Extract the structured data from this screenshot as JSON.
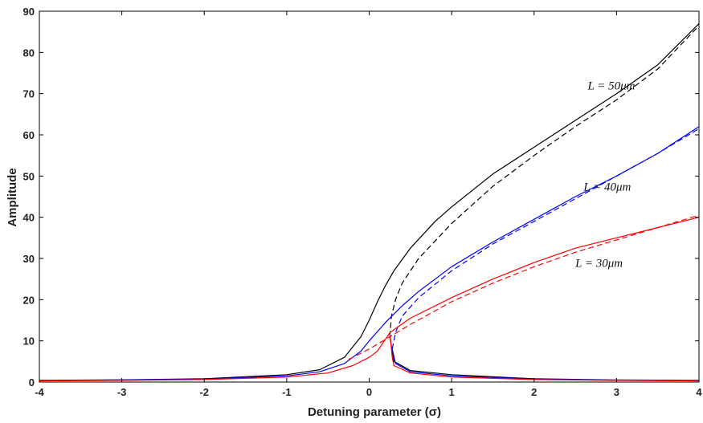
{
  "chart_data": {
    "type": "line",
    "xlabel": "Detuning parameter (σ)",
    "ylabel": "Amplitude",
    "xlim": [
      -4,
      4
    ],
    "ylim": [
      0,
      90
    ],
    "xticks": [
      -4,
      -3,
      -2,
      -1,
      0,
      1,
      2,
      3,
      4
    ],
    "yticks": [
      0,
      10,
      20,
      30,
      40,
      50,
      60,
      70,
      80,
      90
    ],
    "grid": false,
    "legend": "none",
    "series": [
      {
        "color": "#000000",
        "dash": false,
        "branch": "upper",
        "points": [
          [
            -4,
            0.4
          ],
          [
            -3,
            0.55
          ],
          [
            -2,
            0.8
          ],
          [
            -1,
            1.8
          ],
          [
            -0.6,
            3
          ],
          [
            -0.3,
            6
          ],
          [
            -0.1,
            11
          ],
          [
            0,
            15
          ],
          [
            0.1,
            19.5
          ],
          [
            0.2,
            23.5
          ],
          [
            0.3,
            27
          ],
          [
            0.5,
            32.5
          ],
          [
            0.8,
            39
          ],
          [
            1,
            42.5
          ],
          [
            1.5,
            50.5
          ],
          [
            2,
            57
          ],
          [
            2.5,
            63.5
          ],
          [
            3,
            70
          ],
          [
            3.5,
            77
          ],
          [
            4,
            87
          ]
        ]
      },
      {
        "color": "#000000",
        "dash": true,
        "branch": "middle",
        "points": [
          [
            0.25,
            11
          ],
          [
            0.27,
            16
          ],
          [
            0.32,
            20
          ],
          [
            0.4,
            24
          ],
          [
            0.6,
            30
          ],
          [
            1,
            38.5
          ],
          [
            1.5,
            47.5
          ],
          [
            2,
            55
          ],
          [
            2.5,
            62
          ],
          [
            3,
            68.5
          ],
          [
            3.5,
            76
          ],
          [
            4,
            86.5
          ]
        ]
      },
      {
        "color": "#000000",
        "dash": false,
        "branch": "lower",
        "points": [
          [
            0.25,
            11
          ],
          [
            0.3,
            5
          ],
          [
            0.5,
            2.8
          ],
          [
            1,
            1.8
          ],
          [
            2,
            0.8
          ],
          [
            3,
            0.5
          ],
          [
            4,
            0.4
          ]
        ]
      },
      {
        "color": "#0000ff",
        "dash": false,
        "branch": "upper",
        "points": [
          [
            -4,
            0.35
          ],
          [
            -3,
            0.5
          ],
          [
            -2,
            0.7
          ],
          [
            -1,
            1.5
          ],
          [
            -0.6,
            2.5
          ],
          [
            -0.3,
            4.5
          ],
          [
            -0.1,
            7.5
          ],
          [
            0,
            10
          ],
          [
            0.2,
            14.5
          ],
          [
            0.4,
            18.5
          ],
          [
            0.6,
            22
          ],
          [
            1,
            28
          ],
          [
            1.5,
            34
          ],
          [
            2,
            39.5
          ],
          [
            2.5,
            45
          ],
          [
            3,
            50
          ],
          [
            3.5,
            55.5
          ],
          [
            4,
            62
          ]
        ]
      },
      {
        "color": "#0000ff",
        "dash": true,
        "branch": "middle",
        "points": [
          [
            0.28,
            8
          ],
          [
            0.32,
            12
          ],
          [
            0.4,
            16
          ],
          [
            0.6,
            20.5
          ],
          [
            1,
            27
          ],
          [
            1.5,
            33.5
          ],
          [
            2,
            39
          ],
          [
            2.5,
            44.5
          ],
          [
            3,
            50
          ],
          [
            3.5,
            55.5
          ],
          [
            4,
            61.5
          ]
        ]
      },
      {
        "color": "#0000ff",
        "dash": false,
        "branch": "lower",
        "points": [
          [
            0.28,
            8
          ],
          [
            0.32,
            4.5
          ],
          [
            0.5,
            2.5
          ],
          [
            1,
            1.5
          ],
          [
            2,
            0.7
          ],
          [
            3,
            0.45
          ],
          [
            4,
            0.35
          ]
        ]
      },
      {
        "color": "#ff0000",
        "dash": false,
        "branch": "upper",
        "points": [
          [
            -4,
            0.3
          ],
          [
            -3,
            0.4
          ],
          [
            -2,
            0.6
          ],
          [
            -1,
            1.2
          ],
          [
            -0.5,
            2.2
          ],
          [
            -0.2,
            4
          ],
          [
            0,
            6
          ],
          [
            0.1,
            7.5
          ],
          [
            0.25,
            12
          ],
          [
            0.5,
            15.5
          ],
          [
            1,
            20.5
          ],
          [
            1.5,
            25
          ],
          [
            2,
            29
          ],
          [
            2.5,
            32.5
          ],
          [
            3,
            35
          ],
          [
            3.5,
            37.5
          ],
          [
            4,
            40
          ]
        ]
      },
      {
        "color": "#ff0000",
        "dash": true,
        "branch": "middle",
        "points": [
          [
            -0.25,
            5.5
          ],
          [
            0,
            8
          ],
          [
            0.25,
            11
          ],
          [
            0.5,
            14
          ],
          [
            1,
            19.5
          ],
          [
            1.5,
            24
          ],
          [
            2,
            28
          ],
          [
            2.5,
            31.5
          ],
          [
            3,
            34.5
          ],
          [
            3.5,
            37.5
          ],
          [
            4,
            40.5
          ]
        ]
      },
      {
        "color": "#ff0000",
        "dash": false,
        "branch": "lower",
        "points": [
          [
            0.25,
            12
          ],
          [
            0.28,
            6
          ],
          [
            0.3,
            4
          ],
          [
            0.5,
            2.2
          ],
          [
            1,
            1.2
          ],
          [
            2,
            0.6
          ],
          [
            3,
            0.4
          ],
          [
            4,
            0.3
          ]
        ]
      }
    ],
    "annotations": [
      {
        "text": "L = 50μm",
        "x": 2.65,
        "y": 71,
        "anchor": "start"
      },
      {
        "text": "L = 40μm",
        "x": 2.6,
        "y": 46.5,
        "anchor": "start"
      },
      {
        "text": "L = 30μm",
        "x": 2.5,
        "y": 28,
        "anchor": "start"
      }
    ]
  }
}
